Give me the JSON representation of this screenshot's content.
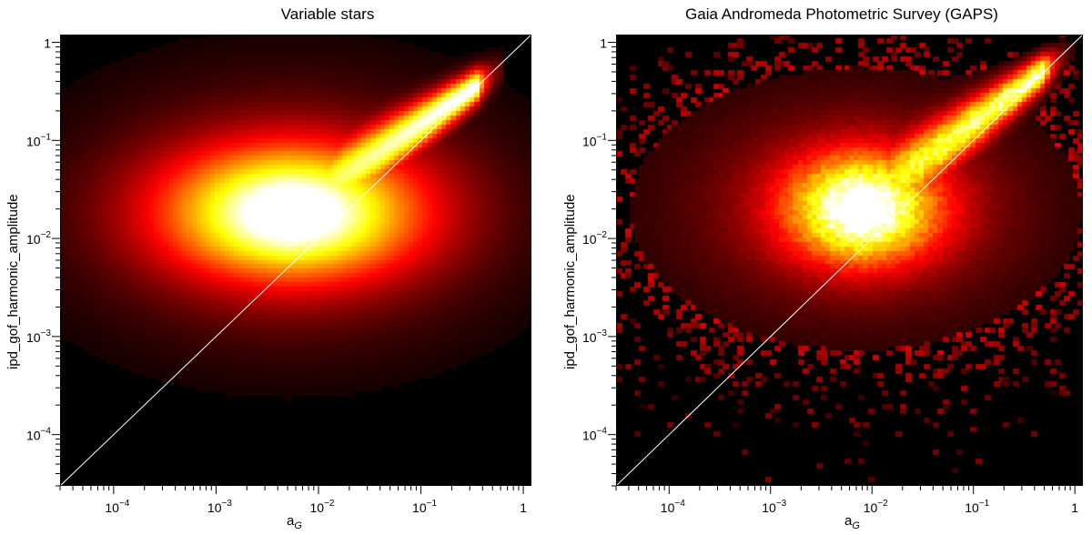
{
  "chart_data": [
    {
      "type": "heatmap",
      "title": "Variable stars",
      "xlabel_main": "a",
      "xlabel_sub": "G",
      "ylabel": "ipd_gof_harmonic_amplitude",
      "xscale": "log",
      "yscale": "log",
      "xlim": [
        3e-05,
        1.2
      ],
      "ylim": [
        3e-05,
        1.2
      ],
      "x_ticks": [
        {
          "value": 0.0001,
          "base": "10",
          "exp": "−4"
        },
        {
          "value": 0.001,
          "base": "10",
          "exp": "−3"
        },
        {
          "value": 0.01,
          "base": "10",
          "exp": "−2"
        },
        {
          "value": 0.1,
          "base": "10",
          "exp": "−1"
        },
        {
          "value": 1,
          "base": "1",
          "exp": ""
        }
      ],
      "y_ticks": [
        {
          "value": 0.0001,
          "base": "10",
          "exp": "−4"
        },
        {
          "value": 0.001,
          "base": "10",
          "exp": "−3"
        },
        {
          "value": 0.01,
          "base": "10",
          "exp": "−2"
        },
        {
          "value": 0.1,
          "base": "10",
          "exp": "−1"
        },
        {
          "value": 1,
          "base": "1",
          "exp": ""
        }
      ],
      "reference_line": "y = x",
      "colormap": "black-red-yellow-white",
      "density_peak": {
        "x": 0.005,
        "y": 0.018
      },
      "density_ridge_to": {
        "x": 0.35,
        "y": 0.35
      }
    },
    {
      "type": "heatmap",
      "title": "Gaia Andromeda Photometric Survey (GAPS)",
      "xlabel_main": "a",
      "xlabel_sub": "G",
      "ylabel": "ipd_gof_harmonic_amplitude",
      "xscale": "log",
      "yscale": "log",
      "xlim": [
        3e-05,
        1.2
      ],
      "ylim": [
        3e-05,
        1.2
      ],
      "x_ticks": [
        {
          "value": 0.0001,
          "base": "10",
          "exp": "−4"
        },
        {
          "value": 0.001,
          "base": "10",
          "exp": "−3"
        },
        {
          "value": 0.01,
          "base": "10",
          "exp": "−2"
        },
        {
          "value": 0.1,
          "base": "10",
          "exp": "−1"
        },
        {
          "value": 1,
          "base": "1",
          "exp": ""
        }
      ],
      "y_ticks": [
        {
          "value": 0.0001,
          "base": "10",
          "exp": "−4"
        },
        {
          "value": 0.001,
          "base": "10",
          "exp": "−3"
        },
        {
          "value": 0.01,
          "base": "10",
          "exp": "−2"
        },
        {
          "value": 0.1,
          "base": "10",
          "exp": "−1"
        },
        {
          "value": 1,
          "base": "1",
          "exp": ""
        }
      ],
      "reference_line": "y = x",
      "colormap": "black-red-yellow-white",
      "density_peak": {
        "x": 0.007,
        "y": 0.02
      },
      "density_ridge_to": {
        "x": 0.5,
        "y": 0.5
      }
    }
  ]
}
